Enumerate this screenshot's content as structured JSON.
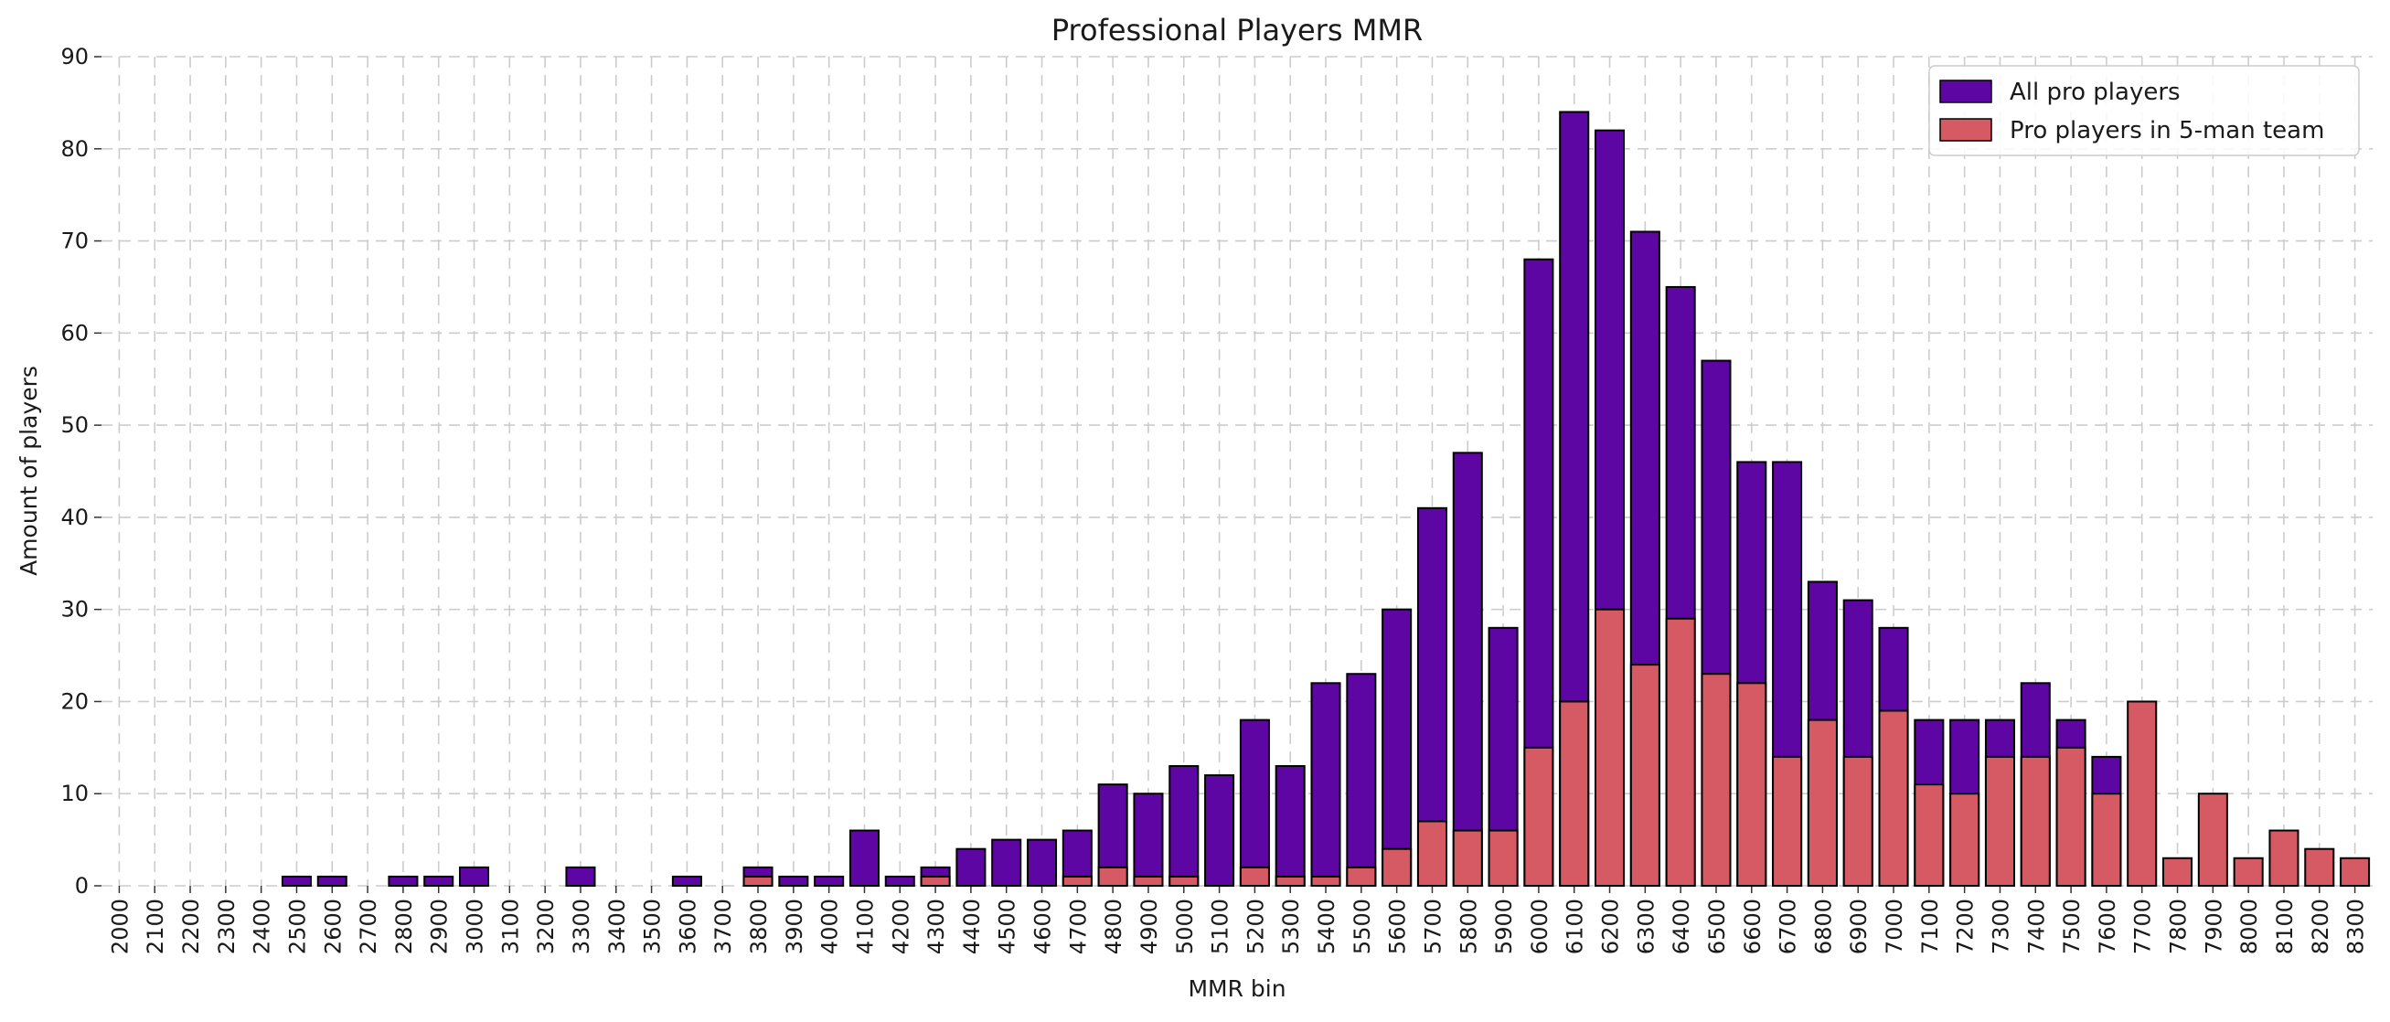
{
  "chart_data": {
    "type": "bar",
    "title": "Professional Players MMR",
    "xlabel": "MMR bin",
    "ylabel": "Amount of players",
    "ylim": [
      0,
      90
    ],
    "yticks": [
      0,
      10,
      20,
      30,
      40,
      50,
      60,
      70,
      80,
      90
    ],
    "grid": true,
    "legend_position": "top-right",
    "categories": [
      "2000",
      "2100",
      "2200",
      "2300",
      "2400",
      "2500",
      "2600",
      "2700",
      "2800",
      "2900",
      "3000",
      "3100",
      "3200",
      "3300",
      "3400",
      "3500",
      "3600",
      "3700",
      "3800",
      "3900",
      "4000",
      "4100",
      "4200",
      "4300",
      "4400",
      "4500",
      "4600",
      "4700",
      "4800",
      "4900",
      "5000",
      "5100",
      "5200",
      "5300",
      "5400",
      "5500",
      "5600",
      "5700",
      "5800",
      "5900",
      "6000",
      "6100",
      "6200",
      "6300",
      "6400",
      "6500",
      "6600",
      "6700",
      "6800",
      "6900",
      "7000",
      "7100",
      "7200",
      "7300",
      "7400",
      "7500",
      "7600",
      "7700",
      "7800",
      "7900",
      "8000",
      "8100",
      "8200",
      "8300"
    ],
    "series": [
      {
        "name": "All pro players",
        "color": "#5e06a3",
        "values": [
          0,
          0,
          0,
          0,
          0,
          1,
          1,
          0,
          1,
          1,
          2,
          0,
          0,
          2,
          0,
          0,
          1,
          0,
          2,
          1,
          1,
          6,
          1,
          2,
          4,
          5,
          5,
          6,
          11,
          10,
          13,
          12,
          18,
          13,
          22,
          23,
          30,
          41,
          47,
          28,
          68,
          84,
          82,
          71,
          65,
          57,
          46,
          46,
          33,
          31,
          28,
          18,
          18,
          18,
          22,
          18,
          14,
          0,
          0,
          0,
          0,
          0,
          0,
          0
        ]
      },
      {
        "name": "Pro players in 5-man team",
        "color": "#d55a63",
        "values": [
          0,
          0,
          0,
          0,
          0,
          0,
          0,
          0,
          0,
          0,
          0,
          0,
          0,
          0,
          0,
          0,
          0,
          0,
          1,
          0,
          0,
          0,
          0,
          1,
          0,
          0,
          0,
          1,
          2,
          1,
          1,
          0,
          2,
          1,
          1,
          2,
          4,
          7,
          6,
          6,
          15,
          20,
          30,
          24,
          29,
          23,
          22,
          14,
          18,
          14,
          19,
          11,
          10,
          14,
          14,
          15,
          10,
          20,
          3,
          10,
          3,
          6,
          4,
          3
        ]
      }
    ]
  }
}
